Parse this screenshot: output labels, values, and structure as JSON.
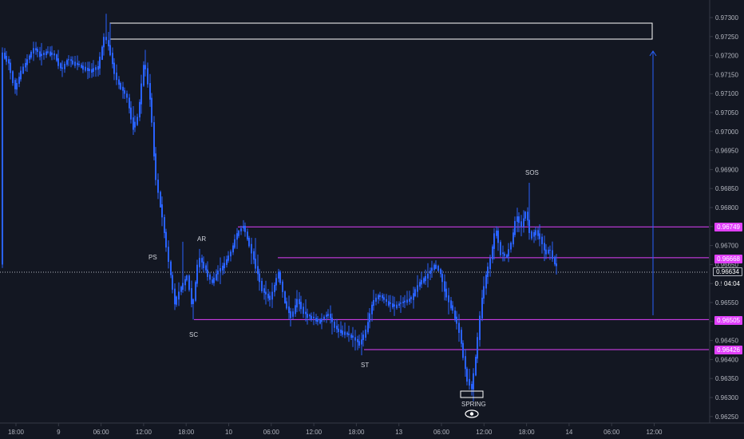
{
  "chart_data": {
    "type": "candlestick",
    "y_ticks": [
      "0.97300",
      "0.97250",
      "0.97200",
      "0.97150",
      "0.97100",
      "0.97050",
      "0.97000",
      "0.96950",
      "0.96900",
      "0.96850",
      "0.96800",
      "0.96750",
      "0.96700",
      "0.96650",
      "0.96600",
      "0.96550",
      "0.96500",
      "0.96450",
      "0.96400",
      "0.96350",
      "0.96300",
      "0.96250"
    ],
    "x_ticks": [
      "18:00",
      "9",
      "06:00",
      "12:00",
      "18:00",
      "10",
      "06:00",
      "12:00",
      "18:00",
      "13",
      "06:00",
      "12:00",
      "18:00",
      "14",
      "06:00",
      "12:00"
    ],
    "levels": [
      {
        "label": "0.96749",
        "value": 0.96749
      },
      {
        "label": "0.96668",
        "value": 0.96668
      },
      {
        "label": "0.96505",
        "value": 0.96505
      },
      {
        "label": "0.96426",
        "value": 0.96426
      }
    ],
    "current_price": "0.96634",
    "countdown": "04:04",
    "countdown_prefix": "0",
    "annotations": [
      "PS",
      "AR",
      "SC",
      "ST",
      "SOS",
      "SPRING"
    ],
    "resistance_zone": [
      0.97245,
      0.97285
    ],
    "colors": {
      "up": "#2962ff",
      "down": "#2962ff",
      "levels": "#e040fb",
      "zone": "#ffffff",
      "arrow": "#2962ff",
      "background": "#131722"
    }
  }
}
